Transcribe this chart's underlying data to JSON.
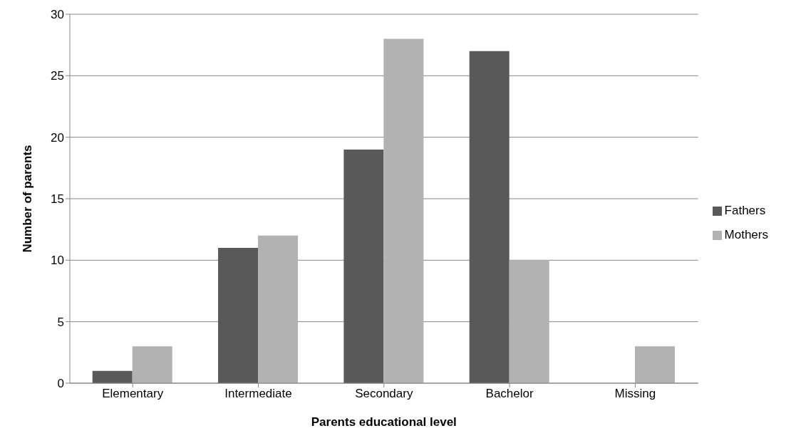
{
  "chart_data": {
    "type": "bar",
    "xlabel": "Parents educational level",
    "ylabel": "Number of parents",
    "categories": [
      "Elementary",
      "Intermediate",
      "Secondary",
      "Bachelor",
      "Missing"
    ],
    "series": [
      {
        "name": "Fathers",
        "color": "#595959",
        "values": [
          1,
          11,
          19,
          27,
          0
        ]
      },
      {
        "name": "Mothers",
        "color": "#b2b2b2",
        "values": [
          3,
          12,
          28,
          10,
          3
        ]
      }
    ],
    "ylim": [
      0,
      30
    ],
    "yticks": [
      0,
      5,
      10,
      15,
      20,
      25,
      30
    ],
    "grid": "y",
    "legend": "right"
  }
}
